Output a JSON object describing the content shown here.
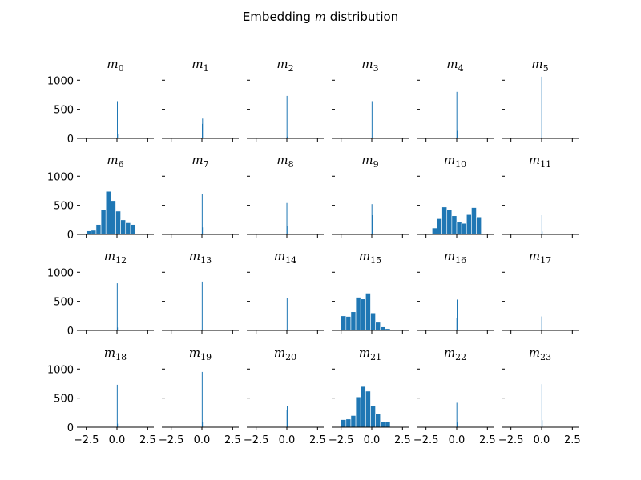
{
  "figure": {
    "title_prefix": "Embedding ",
    "title_var": "m",
    "title_suffix": " distribution"
  },
  "chart_data": {
    "type": "bar",
    "layout_rows": 4,
    "layout_cols": 6,
    "xlim": [
      -3,
      3
    ],
    "ylim": [
      0,
      1100
    ],
    "xticks": [
      -2.5,
      0.0,
      2.5
    ],
    "xtick_labels": [
      "−2.5",
      "0.0",
      "2.5"
    ],
    "yticks": [
      0,
      500,
      1000
    ],
    "ytick_labels": [
      "0",
      "500",
      "1000"
    ],
    "bar_color": "#1f77b4",
    "spines_visible": [
      "bottom"
    ],
    "panels": [
      {
        "var": "m",
        "sub": "0",
        "bins": [
          [
            0.0,
            0.02,
            640
          ],
          [
            0.02,
            0.04,
            75
          ]
        ]
      },
      {
        "var": "m",
        "sub": "1",
        "bins": [
          [
            0.0,
            0.02,
            250
          ],
          [
            0.02,
            0.04,
            340
          ]
        ]
      },
      {
        "var": "m",
        "sub": "2",
        "bins": [
          [
            -0.02,
            0.0,
            730
          ],
          [
            0.0,
            0.02,
            30
          ]
        ]
      },
      {
        "var": "m",
        "sub": "3",
        "bins": [
          [
            -0.01,
            0.01,
            640
          ]
        ]
      },
      {
        "var": "m",
        "sub": "4",
        "bins": [
          [
            -0.02,
            0.0,
            800
          ],
          [
            0.0,
            0.02,
            130
          ]
        ]
      },
      {
        "var": "m",
        "sub": "5",
        "bins": [
          [
            -0.02,
            0.0,
            1060
          ],
          [
            0.0,
            0.02,
            340
          ]
        ]
      },
      {
        "var": "m",
        "sub": "6",
        "bins": [
          [
            -2.5,
            -2.1,
            60
          ],
          [
            -2.1,
            -1.7,
            70
          ],
          [
            -1.7,
            -1.3,
            170
          ],
          [
            -1.3,
            -0.9,
            430
          ],
          [
            -0.9,
            -0.5,
            740
          ],
          [
            -0.5,
            -0.1,
            580
          ],
          [
            -0.1,
            0.3,
            400
          ],
          [
            0.3,
            0.7,
            250
          ],
          [
            0.7,
            1.1,
            200
          ],
          [
            1.1,
            1.5,
            170
          ]
        ]
      },
      {
        "var": "m",
        "sub": "7",
        "bins": [
          [
            -0.01,
            0.01,
            690
          ],
          [
            0.01,
            0.03,
            120
          ]
        ]
      },
      {
        "var": "m",
        "sub": "8",
        "bins": [
          [
            -0.03,
            -0.01,
            540
          ],
          [
            -0.01,
            0.01,
            140
          ]
        ]
      },
      {
        "var": "m",
        "sub": "9",
        "bins": [
          [
            -0.02,
            0.0,
            520
          ],
          [
            0.0,
            0.02,
            330
          ]
        ]
      },
      {
        "var": "m",
        "sub": "10",
        "bins": [
          [
            -2.0,
            -1.6,
            110
          ],
          [
            -1.6,
            -1.2,
            270
          ],
          [
            -1.2,
            -0.8,
            470
          ],
          [
            -0.8,
            -0.4,
            430
          ],
          [
            -0.4,
            0.0,
            320
          ],
          [
            0.0,
            0.4,
            210
          ],
          [
            0.4,
            0.8,
            190
          ],
          [
            0.8,
            1.2,
            340
          ],
          [
            1.2,
            1.6,
            460
          ],
          [
            1.6,
            2.0,
            300
          ]
        ]
      },
      {
        "var": "m",
        "sub": "11",
        "bins": [
          [
            -0.01,
            0.01,
            330
          ],
          [
            0.01,
            0.03,
            50
          ]
        ]
      },
      {
        "var": "m",
        "sub": "12",
        "bins": [
          [
            -0.01,
            0.01,
            810
          ],
          [
            0.01,
            0.03,
            50
          ]
        ]
      },
      {
        "var": "m",
        "sub": "13",
        "bins": [
          [
            -0.01,
            0.01,
            840
          ]
        ]
      },
      {
        "var": "m",
        "sub": "14",
        "bins": [
          [
            -0.01,
            0.01,
            550
          ]
        ]
      },
      {
        "var": "m",
        "sub": "15",
        "bins": [
          [
            -2.5,
            -2.1,
            250
          ],
          [
            -2.1,
            -1.7,
            240
          ],
          [
            -1.7,
            -1.3,
            320
          ],
          [
            -1.3,
            -0.9,
            570
          ],
          [
            -0.9,
            -0.5,
            540
          ],
          [
            -0.5,
            -0.1,
            640
          ],
          [
            -0.1,
            0.3,
            300
          ],
          [
            0.3,
            0.7,
            140
          ],
          [
            0.7,
            1.1,
            60
          ],
          [
            1.1,
            1.5,
            30
          ]
        ]
      },
      {
        "var": "m",
        "sub": "16",
        "bins": [
          [
            -0.02,
            0.0,
            220
          ],
          [
            0.0,
            0.02,
            530
          ]
        ]
      },
      {
        "var": "m",
        "sub": "17",
        "bins": [
          [
            -0.02,
            0.0,
            240
          ],
          [
            0.0,
            0.02,
            340
          ]
        ]
      },
      {
        "var": "m",
        "sub": "18",
        "bins": [
          [
            -0.01,
            0.01,
            730
          ],
          [
            0.01,
            0.03,
            60
          ]
        ]
      },
      {
        "var": "m",
        "sub": "19",
        "bins": [
          [
            -0.01,
            0.01,
            950
          ],
          [
            0.01,
            0.03,
            90
          ]
        ]
      },
      {
        "var": "m",
        "sub": "20",
        "bins": [
          [
            -0.02,
            0.0,
            300
          ],
          [
            0.0,
            0.02,
            370
          ]
        ]
      },
      {
        "var": "m",
        "sub": "21",
        "bins": [
          [
            -2.5,
            -2.1,
            130
          ],
          [
            -2.1,
            -1.7,
            140
          ],
          [
            -1.7,
            -1.3,
            200
          ],
          [
            -1.3,
            -0.9,
            520
          ],
          [
            -0.9,
            -0.5,
            700
          ],
          [
            -0.5,
            -0.1,
            620
          ],
          [
            -0.1,
            0.3,
            370
          ],
          [
            0.3,
            0.7,
            230
          ],
          [
            0.7,
            1.1,
            90
          ],
          [
            1.1,
            1.5,
            90
          ]
        ]
      },
      {
        "var": "m",
        "sub": "22",
        "bins": [
          [
            -0.02,
            0.0,
            420
          ],
          [
            0.0,
            0.02,
            80
          ]
        ]
      },
      {
        "var": "m",
        "sub": "23",
        "bins": [
          [
            -0.01,
            0.01,
            740
          ],
          [
            0.01,
            0.03,
            120
          ]
        ]
      }
    ]
  }
}
